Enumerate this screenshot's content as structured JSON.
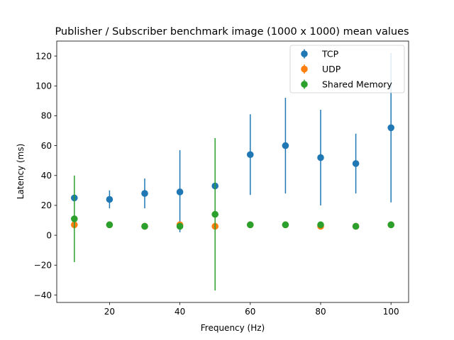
{
  "chart_data": {
    "type": "scatter",
    "title": "Publisher / Subscriber benchmark image (1000 x 1000) mean values",
    "xlabel": "Frequency (Hz)",
    "ylabel": "Latency (ms)",
    "xlim": [
      5,
      105
    ],
    "ylim": [
      -45,
      130
    ],
    "xticks": [
      20,
      40,
      60,
      80,
      100
    ],
    "yticks": [
      -40,
      -20,
      0,
      20,
      40,
      60,
      80,
      100,
      120
    ],
    "grid": false,
    "legend_position": "top-right",
    "error_bars": true,
    "series": [
      {
        "name": "TCP",
        "color": "#1f77b4",
        "x": [
          10,
          20,
          30,
          40,
          50,
          60,
          70,
          80,
          90,
          100
        ],
        "y": [
          25,
          24,
          28,
          29,
          33,
          54,
          60,
          52,
          48,
          72
        ],
        "yerr_low": [
          25,
          18,
          18,
          2,
          33,
          27,
          28,
          20,
          28,
          22
        ],
        "yerr_high": [
          25,
          30,
          38,
          57,
          33,
          81,
          92,
          84,
          68,
          122
        ]
      },
      {
        "name": "UDP",
        "color": "#ff7f0e",
        "x": [
          10,
          20,
          30,
          40,
          50,
          60,
          70,
          80,
          90,
          100
        ],
        "y": [
          7,
          7,
          6,
          7,
          6,
          7,
          7,
          6,
          6,
          7
        ],
        "yerr_low": [
          7,
          7,
          6,
          7,
          6,
          7,
          7,
          6,
          6,
          7
        ],
        "yerr_high": [
          7,
          7,
          6,
          7,
          6,
          7,
          7,
          6,
          6,
          7
        ]
      },
      {
        "name": "Shared Memory",
        "color": "#2ca02c",
        "x": [
          10,
          20,
          30,
          40,
          50,
          60,
          70,
          80,
          90,
          100
        ],
        "y": [
          11,
          7,
          6,
          6,
          14,
          7,
          7,
          7,
          6,
          7
        ],
        "yerr_low": [
          -18,
          7,
          6,
          6,
          -37,
          7,
          7,
          7,
          6,
          7
        ],
        "yerr_high": [
          40,
          7,
          6,
          6,
          65,
          7,
          7,
          7,
          6,
          7
        ]
      }
    ]
  }
}
